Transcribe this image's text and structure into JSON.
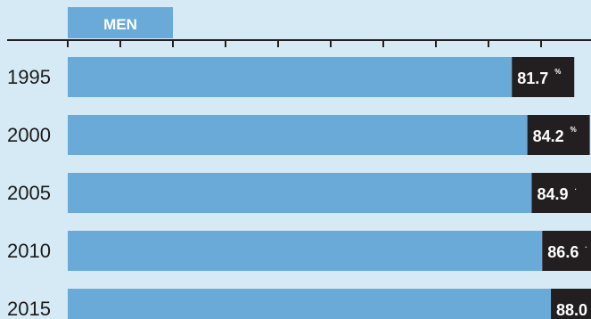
{
  "colors": {
    "background": "#d6eaf5",
    "bar": "#6aaad8",
    "label_box": "#231f20",
    "axis": "#231f20",
    "tab": "#6aaad8"
  },
  "chart_data": {
    "type": "bar",
    "orientation": "horizontal",
    "categories": [
      "1995",
      "2000",
      "2005",
      "2010",
      "2015"
    ],
    "series": [
      {
        "name": "MEN",
        "values": [
          81.7,
          84.2,
          84.9,
          86.6,
          88.0
        ]
      }
    ],
    "value_labels": [
      "81.7",
      "84.2",
      "84.9",
      "86.6",
      "88.0"
    ],
    "value_suffixes": [
      "%",
      "%",
      ".",
      ".",
      "%"
    ],
    "xlim": [
      0,
      100
    ],
    "grid": false,
    "legend": "top-left"
  }
}
